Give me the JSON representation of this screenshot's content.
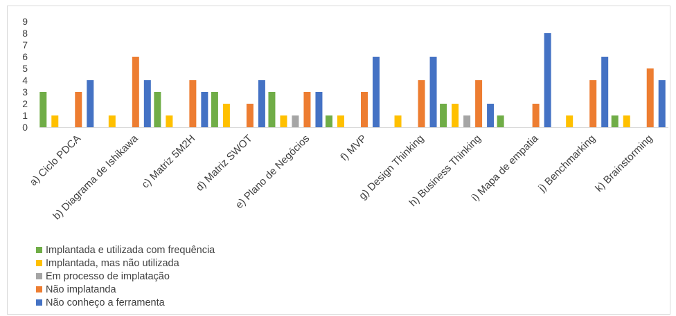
{
  "chart_data": {
    "type": "bar",
    "categories": [
      "a) Ciclo PDCA",
      "b) Diagrama de Ishikawa",
      "c) Matriz 5M2H",
      "d) Matriz SWOT",
      "e) Plano de Negócios",
      "f) MVP",
      "g) Design Thinking",
      "h) Business Thinking",
      "i) Mapa de empatia",
      "j) Benchmarking",
      "k) Brainstorming"
    ],
    "series": [
      {
        "name": "Implantada e utilizada com frequência",
        "color": "#70ad47",
        "values": [
          3,
          0,
          3,
          3,
          3,
          1,
          0,
          2,
          1,
          0,
          1
        ]
      },
      {
        "name": "Implantada, mas não utilizada",
        "color": "#ffc000",
        "values": [
          1,
          1,
          1,
          2,
          1,
          1,
          1,
          2,
          0,
          1,
          1
        ]
      },
      {
        "name": "Em processo de implatação",
        "color": "#a5a5a5",
        "values": [
          0,
          0,
          0,
          0,
          1,
          0,
          0,
          1,
          0,
          0,
          0
        ]
      },
      {
        "name": "Não implatanda",
        "color": "#ed7d31",
        "values": [
          3,
          6,
          4,
          2,
          3,
          3,
          4,
          4,
          2,
          4,
          5
        ]
      },
      {
        "name": "Não conheço a ferramenta",
        "color": "#4472c4",
        "values": [
          4,
          4,
          3,
          4,
          3,
          6,
          6,
          2,
          8,
          6,
          4
        ]
      }
    ],
    "ylim": [
      0,
      9
    ],
    "yticks": [
      "0",
      "1",
      "2",
      "3",
      "4",
      "5",
      "6",
      "7",
      "8",
      "9"
    ],
    "grid": false,
    "legend_position": "bottom-left"
  }
}
